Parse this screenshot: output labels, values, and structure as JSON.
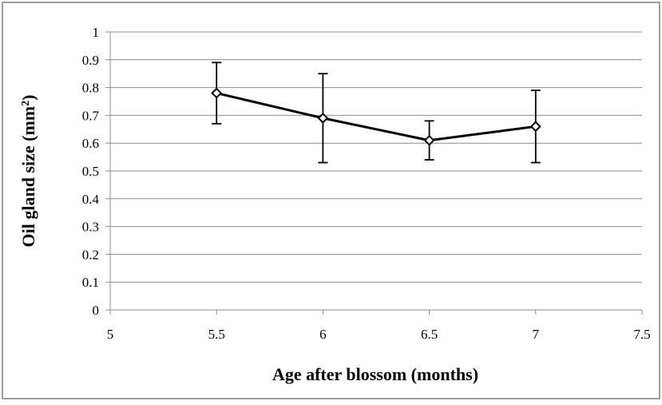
{
  "chart_data": {
    "type": "line",
    "title": "",
    "xlabel": "Age after blossom (months)",
    "ylabel_main": "Oil gland size (mm",
    "ylabel_sup": "2",
    "ylabel_close": ")",
    "xlim": [
      5,
      7.5
    ],
    "ylim": [
      0,
      1
    ],
    "x_ticks": [
      "5",
      "5.5",
      "6",
      "6.5",
      "7",
      "7.5"
    ],
    "y_ticks": [
      "0",
      "0.1",
      "0.2",
      "0.3",
      "0.4",
      "0.5",
      "0.6",
      "0.7",
      "0.8",
      "0.9",
      "1"
    ],
    "grid": "horizontal",
    "legend": "none",
    "series": [
      {
        "x": [
          5.5,
          6,
          6.5,
          7
        ],
        "y": [
          0.78,
          0.69,
          0.61,
          0.66
        ],
        "error_low": [
          0.67,
          0.53,
          0.54,
          0.53
        ],
        "error_high": [
          0.89,
          0.85,
          0.68,
          0.79
        ],
        "marker": "diamond",
        "color": "#000000"
      }
    ]
  },
  "colors": {
    "grid": "#8c8c8c",
    "axis": "#8c8c8c",
    "frame": "#7f7f7f",
    "series": "#000000",
    "background": "#ffffff"
  }
}
